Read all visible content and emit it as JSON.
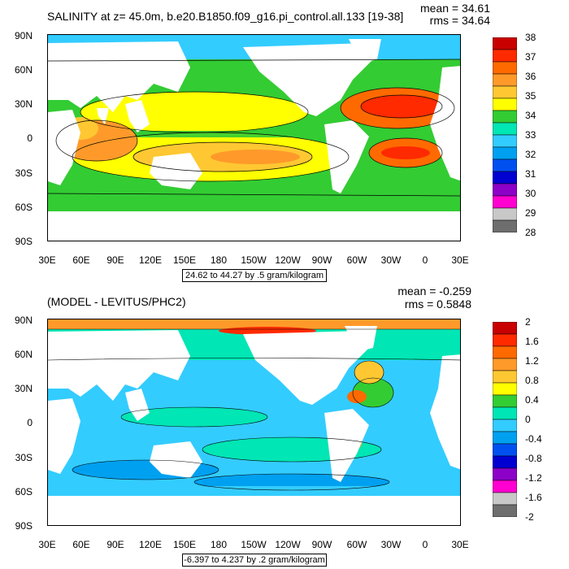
{
  "top": {
    "title": "SALINITY at z=  45.0m, b.e20.B1850.f09_g16.pi_control.all.133 [19-38]",
    "mean": "mean = 34.61",
    "rms": "rms = 34.64",
    "range": "24.62 to 44.27 by .5 gram/kilogram",
    "colorbar_labels": [
      "38",
      "37",
      "36",
      "35",
      "34",
      "33",
      "32",
      "31",
      "30",
      "29",
      "28"
    ],
    "colorbar_colors": [
      "#c80000",
      "#ff2a00",
      "#ff6a00",
      "#ff9a2a",
      "#ffc832",
      "#ffff00",
      "#33cc33",
      "#00e6b4",
      "#33ccff",
      "#00a0f0",
      "#0050f0",
      "#0000d0",
      "#8c00c8",
      "#ff00d0",
      "#c8c8c8",
      "#6e6e6e"
    ]
  },
  "bottom": {
    "title": "(MODEL - LEVITUS/PHC2)",
    "mean": "mean = -0.259",
    "rms": "rms = 0.5848",
    "range": "-6.397 to 4.237 by .2 gram/kilogram",
    "colorbar_labels": [
      "2",
      "1.6",
      "1.2",
      "0.8",
      "0.4",
      "0",
      "-0.4",
      "-0.8",
      "-1.2",
      "-1.6",
      "-2"
    ],
    "colorbar_colors": [
      "#c80000",
      "#ff2a00",
      "#ff6a00",
      "#ff9a2a",
      "#ffc832",
      "#ffff00",
      "#33cc33",
      "#00e6b4",
      "#33ccff",
      "#00a0f0",
      "#0050f0",
      "#0000d0",
      "#8c00c8",
      "#ff00d0",
      "#c8c8c8",
      "#6e6e6e"
    ]
  },
  "axes": {
    "y_labels": [
      "90N",
      "60N",
      "30N",
      "0",
      "30S",
      "60S",
      "90S"
    ],
    "x_labels": [
      "30E",
      "60E",
      "90E",
      "120E",
      "150E",
      "180",
      "150W",
      "120W",
      "90W",
      "60W",
      "30W",
      "0",
      "30E"
    ]
  }
}
